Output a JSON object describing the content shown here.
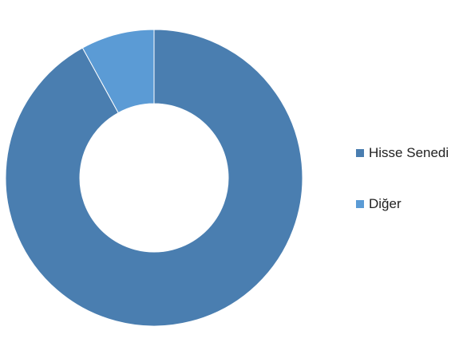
{
  "chart_data": {
    "type": "pie",
    "donut": true,
    "categories": [
      "Hisse Senedi",
      "Diğer"
    ],
    "values": [
      92,
      8
    ],
    "colors": [
      "#4a7eb0",
      "#5b9bd5"
    ],
    "title": "",
    "legend_position": "right"
  }
}
